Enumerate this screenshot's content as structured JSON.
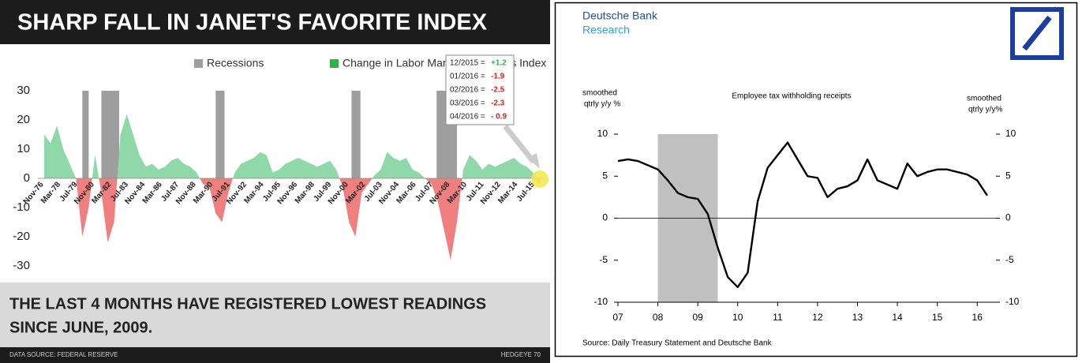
{
  "chart_data": [
    {
      "type": "area",
      "title": "SHARP FALL IN JANET'S FAVORITE INDEX",
      "legend": {
        "recessions": "Recessions",
        "index": "Change in Labor Market Conditions Index"
      },
      "recession_color": "#9e9e9e",
      "positive_color": "#8fd8a8",
      "negative_color": "#f08080",
      "notes": [
        {
          "date": "12/2015 =",
          "value": "+1.2",
          "color": "#2db34a"
        },
        {
          "date": "01/2016 =",
          "value": "-1.9",
          "color": "#e02020"
        },
        {
          "date": "02/2016 =",
          "value": "-2.5",
          "color": "#e02020"
        },
        {
          "date": "03/2016 =",
          "value": "-2.3",
          "color": "#e02020"
        },
        {
          "date": "04/2016 =",
          "value": "- 0.9",
          "color": "#e02020"
        }
      ],
      "caption": [
        "THE LAST 4 MONTHS HAVE REGISTERED LOWEST READINGS",
        "SINCE JUNE, 2009."
      ],
      "source": "DATA SOURCE: FEDERAL RESERVE",
      "footer": "HEDGEYE 70",
      "recessions": [
        [
          1980.0,
          1980.5
        ],
        [
          1981.5,
          1982.9
        ],
        [
          1990.5,
          1991.2
        ],
        [
          2001.2,
          2001.9
        ],
        [
          2007.9,
          2009.5
        ]
      ],
      "xlim": [
        1976.5,
        2016.4
      ],
      "xticks": [
        {
          "value": 1976.83,
          "label": "Nov-76"
        },
        {
          "value": 1978.17,
          "label": "Mar-78"
        },
        {
          "value": 1979.5,
          "label": "Jul-79"
        },
        {
          "value": 1980.83,
          "label": "Nov-80"
        },
        {
          "value": 1982.17,
          "label": "Mar-82"
        },
        {
          "value": 1983.5,
          "label": "Jul-83"
        },
        {
          "value": 1984.83,
          "label": "Nov-84"
        },
        {
          "value": 1986.17,
          "label": "Mar-86"
        },
        {
          "value": 1987.5,
          "label": "Jul-87"
        },
        {
          "value": 1988.83,
          "label": "Nov-88"
        },
        {
          "value": 1990.17,
          "label": "Mar-90"
        },
        {
          "value": 1991.5,
          "label": "Jul-91"
        },
        {
          "value": 1992.83,
          "label": "Nov-92"
        },
        {
          "value": 1994.17,
          "label": "Mar-94"
        },
        {
          "value": 1995.5,
          "label": "Jul-95"
        },
        {
          "value": 1996.83,
          "label": "Nov-96"
        },
        {
          "value": 1998.17,
          "label": "Mar-98"
        },
        {
          "value": 1999.5,
          "label": "Jul-99"
        },
        {
          "value": 2000.83,
          "label": "Nov-00"
        },
        {
          "value": 2002.17,
          "label": "Mar-02"
        },
        {
          "value": 2003.5,
          "label": "Jul-03"
        },
        {
          "value": 2004.83,
          "label": "Nov-04"
        },
        {
          "value": 2006.17,
          "label": "Mar-06"
        },
        {
          "value": 2007.5,
          "label": "Jul-07"
        },
        {
          "value": 2008.83,
          "label": "Nov-08"
        },
        {
          "value": 2010.17,
          "label": "Mar-10"
        },
        {
          "value": 2011.5,
          "label": "Jul-11"
        },
        {
          "value": 2012.83,
          "label": "Nov-12"
        },
        {
          "value": 2014.17,
          "label": "Mar-14"
        },
        {
          "value": 2015.5,
          "label": "Jul-15"
        }
      ],
      "ylim": [
        -30,
        30
      ],
      "yticks": [
        30,
        20,
        10,
        0,
        -10,
        -20,
        -30
      ],
      "x": [
        1977,
        1977.5,
        1978,
        1978.5,
        1979,
        1979.5,
        1980,
        1980.5,
        1981,
        1981.5,
        1982,
        1982.5,
        1983,
        1983.5,
        1984,
        1984.5,
        1985,
        1985.5,
        1986,
        1986.5,
        1987,
        1987.5,
        1988,
        1988.5,
        1989,
        1989.5,
        1990,
        1990.5,
        1991,
        1991.5,
        1992,
        1992.5,
        1993,
        1993.5,
        1994,
        1994.5,
        1995,
        1995.5,
        1996,
        1996.5,
        1997,
        1997.5,
        1998,
        1998.5,
        1999,
        1999.5,
        2000,
        2000.5,
        2001,
        2001.5,
        2002,
        2002.5,
        2003,
        2003.5,
        2004,
        2004.5,
        2005,
        2005.5,
        2006,
        2006.5,
        2007,
        2007.5,
        2008,
        2008.5,
        2009,
        2009.5,
        2010,
        2010.5,
        2011,
        2011.5,
        2012,
        2012.5,
        2013,
        2013.5,
        2014,
        2014.5,
        2015,
        2015.5,
        2016
      ],
      "values": [
        15,
        12,
        18,
        10,
        5,
        0,
        -20,
        -10,
        8,
        -5,
        -22,
        -15,
        15,
        22,
        15,
        8,
        4,
        5,
        3,
        4,
        6,
        7,
        5,
        4,
        2,
        -2,
        -3,
        -12,
        -15,
        -5,
        2,
        5,
        6,
        7,
        9,
        8,
        2,
        3,
        5,
        6,
        7,
        6,
        5,
        4,
        5,
        6,
        3,
        -3,
        -15,
        -20,
        -5,
        -2,
        1,
        3,
        9,
        7,
        6,
        7,
        3,
        2,
        0,
        -2,
        -8,
        -18,
        -28,
        -15,
        3,
        8,
        6,
        3,
        5,
        4,
        5,
        6,
        7,
        5,
        4,
        2,
        -2
      ]
    },
    {
      "type": "line",
      "brand": [
        "Deutsche Bank",
        "Research"
      ],
      "title": "Employee tax withholding receipts",
      "ylabel": [
        "smoothed",
        "qtrly y/y %"
      ],
      "y2label": [
        "smoothed",
        "qtrly y/y%"
      ],
      "source": "Source: Daily Treasury Statement and Deutsche Bank",
      "shade": [
        2008.0,
        2009.5
      ],
      "shade_color": "#c0c0c0",
      "color": "#000000",
      "xlim": [
        2007,
        2016.47
      ],
      "xticks": [
        {
          "value": 2007,
          "label": "07"
        },
        {
          "value": 2008,
          "label": "08"
        },
        {
          "value": 2009,
          "label": "09"
        },
        {
          "value": 2010,
          "label": "10"
        },
        {
          "value": 2011,
          "label": "11"
        },
        {
          "value": 2012,
          "label": "12"
        },
        {
          "value": 2013,
          "label": "13"
        },
        {
          "value": 2014,
          "label": "14"
        },
        {
          "value": 2015,
          "label": "15"
        },
        {
          "value": 2016,
          "label": "16"
        }
      ],
      "ylim": [
        -10,
        10
      ],
      "yticks": [
        10,
        5,
        0,
        -5,
        -10
      ],
      "y2lim": [
        -10,
        10
      ],
      "y2ticks": [
        10,
        5,
        0,
        -5,
        -10
      ],
      "x": [
        2007,
        2007.25,
        2007.5,
        2007.75,
        2008,
        2008.25,
        2008.5,
        2008.75,
        2009,
        2009.25,
        2009.5,
        2009.75,
        2010,
        2010.25,
        2010.5,
        2010.75,
        2011,
        2011.25,
        2011.5,
        2011.75,
        2012,
        2012.25,
        2012.5,
        2012.75,
        2013,
        2013.25,
        2013.5,
        2013.75,
        2014,
        2014.25,
        2014.5,
        2014.75,
        2015,
        2015.25,
        2015.5,
        2015.75,
        2016,
        2016.25
      ],
      "values": [
        6.8,
        7.0,
        6.8,
        6.3,
        5.8,
        4.5,
        3.0,
        2.5,
        2.3,
        0.5,
        -3.5,
        -7.0,
        -8.2,
        -6.5,
        2.0,
        6.0,
        7.5,
        9.0,
        7.0,
        5.0,
        4.8,
        2.5,
        3.5,
        3.8,
        4.5,
        7.0,
        4.5,
        4.0,
        3.5,
        6.5,
        5.0,
        5.5,
        5.8,
        5.8,
        5.5,
        5.2,
        4.5,
        2.7
      ]
    }
  ]
}
